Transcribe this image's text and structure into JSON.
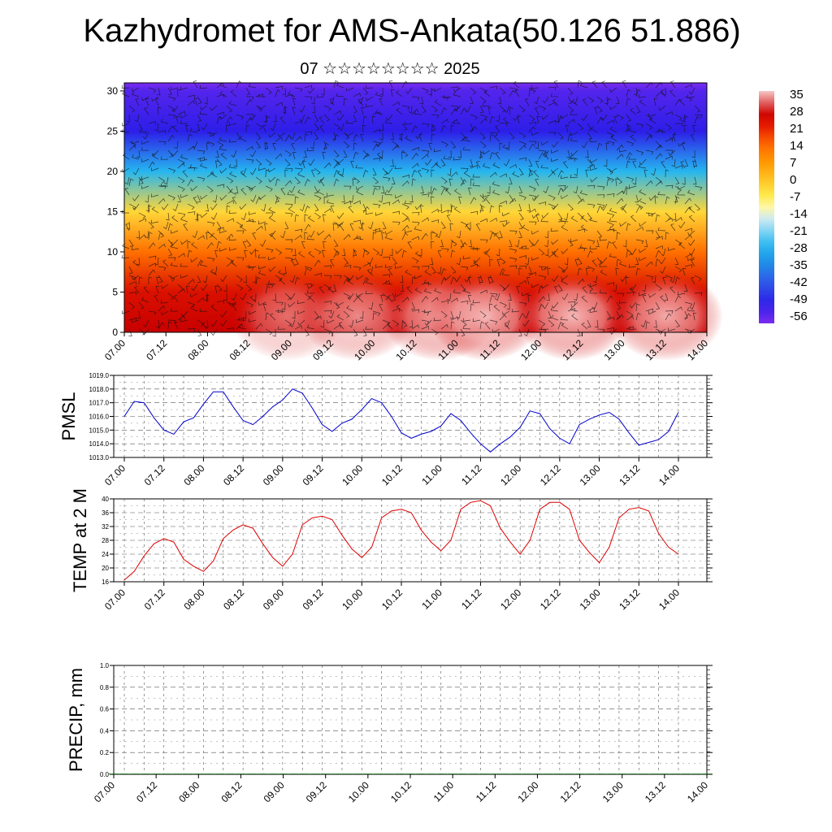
{
  "header": {
    "title": "Kazhydromet for AMS-Ankata(50.126 51.886)",
    "subtitle": "07 ☆☆☆☆☆☆☆☆ 2025"
  },
  "time_labels": [
    "07.00",
    "07.12",
    "08.00",
    "08.12",
    "09.00",
    "09.12",
    "10.00",
    "10.12",
    "11.00",
    "11.12",
    "12.00",
    "12.12",
    "13.00",
    "13.12",
    "14.00"
  ],
  "chart_data": [
    {
      "type": "heatmap",
      "title": "",
      "xlabel": "",
      "ylabel": "",
      "x_categories": [
        "07.00",
        "07.12",
        "08.00",
        "08.12",
        "09.00",
        "09.12",
        "10.00",
        "10.12",
        "11.00",
        "11.12",
        "12.00",
        "12.12",
        "13.00",
        "13.12",
        "14.00"
      ],
      "y_ticks": [
        0,
        5,
        10,
        15,
        20,
        25,
        30
      ],
      "ylim": [
        0,
        31
      ],
      "colorbar_labels": [
        "35",
        "28",
        "21",
        "14",
        "7",
        "0",
        "-7",
        "-14",
        "-21",
        "-28",
        "-35",
        "-42",
        "-49",
        "-56"
      ],
      "colorbar_range": [
        -60,
        36
      ],
      "overlay": "wind barbs",
      "temperature_profile": [
        {
          "level": 0,
          "value": 28
        },
        {
          "level": 5,
          "value": 24
        },
        {
          "level": 10,
          "value": 13
        },
        {
          "level": 15,
          "value": -4
        },
        {
          "level": 20,
          "value": -28
        },
        {
          "level": 25,
          "value": -52
        },
        {
          "level": 30,
          "value": -56
        }
      ],
      "colors": {
        "hot": "#f6b2b2",
        "red": "#d10000",
        "orange": "#ff9a00",
        "yellow": "#ffef5a",
        "cyan": "#22aaee",
        "blue": "#2b25e0",
        "violet": "#7a2bf0"
      }
    },
    {
      "type": "line",
      "ylabel": "PMSL",
      "ylim": [
        1013.0,
        1019.0
      ],
      "y_ticks": [
        "1013.0",
        "1014.0",
        "1015.0",
        "1016.0",
        "1017.0",
        "1018.0",
        "1019.0"
      ],
      "series": [
        {
          "color": "#0000cc",
          "values": [
            1016.0,
            1017.1,
            1017.0,
            1015.9,
            1015.0,
            1014.7,
            1015.6,
            1015.9,
            1016.9,
            1017.8,
            1017.8,
            1016.7,
            1015.7,
            1015.4,
            1016.0,
            1016.7,
            1017.2,
            1018.0,
            1017.7,
            1016.6,
            1015.4,
            1014.9,
            1015.5,
            1015.8,
            1016.5,
            1017.3,
            1017.0,
            1016.0,
            1014.8,
            1014.4,
            1014.7,
            1014.9,
            1015.3,
            1016.2,
            1015.7,
            1014.8,
            1014.0,
            1013.4,
            1014.0,
            1014.5,
            1015.2,
            1016.4,
            1016.2,
            1015.1,
            1014.4,
            1014.0,
            1015.4,
            1015.8,
            1016.1,
            1016.3,
            1015.8,
            1014.8,
            1013.9,
            1014.1,
            1014.3,
            1014.9,
            1016.3
          ]
        }
      ]
    },
    {
      "type": "line",
      "ylabel": "TEMP at 2 M",
      "ylim": [
        16,
        40
      ],
      "y_ticks": [
        "16",
        "20",
        "24",
        "28",
        "32",
        "36",
        "40"
      ],
      "series": [
        {
          "color": "#dd0000",
          "values": [
            16.5,
            19.0,
            23.5,
            27.0,
            28.5,
            27.5,
            22.5,
            20.5,
            19.0,
            22.0,
            28.5,
            31.0,
            32.5,
            31.5,
            27.0,
            23.0,
            20.5,
            24.0,
            32.5,
            34.5,
            35.0,
            34.0,
            29.5,
            25.5,
            23.0,
            26.0,
            34.5,
            36.5,
            37.0,
            36.0,
            31.0,
            27.5,
            25.0,
            28.0,
            37.0,
            39.0,
            39.5,
            38.0,
            31.5,
            27.5,
            24.0,
            28.0,
            37.0,
            39.0,
            39.0,
            37.0,
            28.0,
            24.5,
            21.5,
            26.0,
            34.5,
            37.0,
            37.5,
            36.5,
            30.0,
            26.0,
            24.0
          ]
        }
      ]
    },
    {
      "type": "bar",
      "ylabel": "PRECIP, mm",
      "ylim": [
        0.0,
        1.0
      ],
      "y_ticks": [
        "0.0",
        "0.2",
        "0.4",
        "0.6",
        "0.8",
        "1.0"
      ],
      "values": [
        0,
        0,
        0,
        0,
        0,
        0,
        0,
        0,
        0,
        0,
        0,
        0,
        0,
        0,
        0,
        0,
        0,
        0,
        0,
        0,
        0,
        0,
        0,
        0,
        0,
        0,
        0,
        0,
        0,
        0,
        0,
        0,
        0,
        0,
        0,
        0,
        0,
        0,
        0,
        0,
        0,
        0,
        0,
        0,
        0,
        0,
        0,
        0,
        0,
        0,
        0,
        0,
        0,
        0,
        0,
        0,
        0
      ],
      "color": "#006400"
    }
  ]
}
